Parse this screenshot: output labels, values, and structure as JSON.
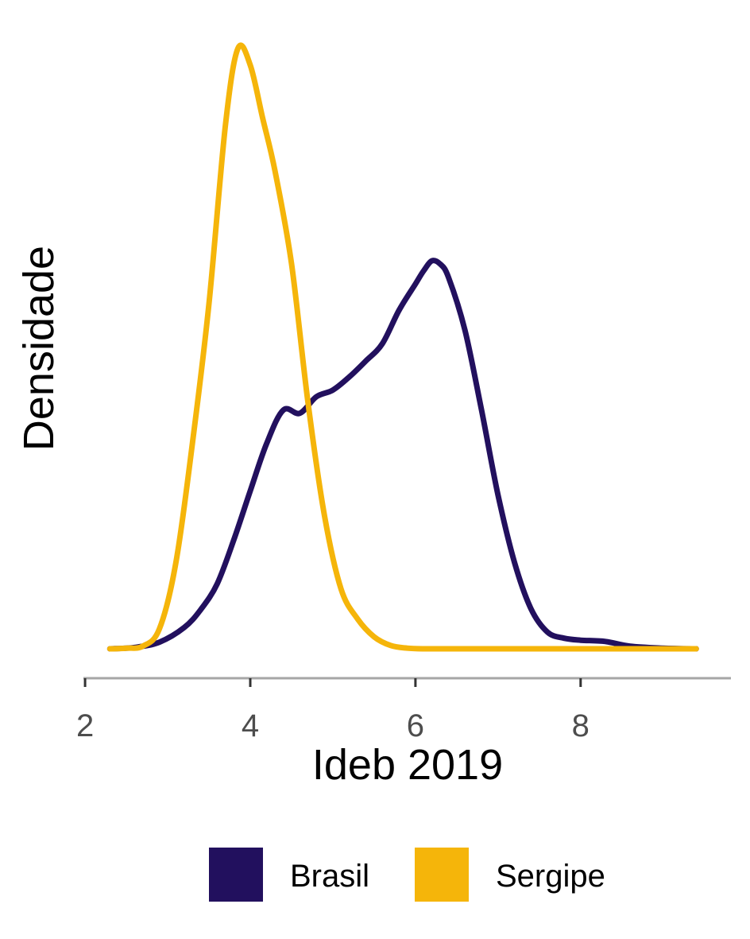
{
  "chart_data": {
    "type": "line",
    "title": "",
    "xlabel": "Ideb 2019",
    "ylabel": "Densidade",
    "xlim": [
      1.98,
      9.82
    ],
    "ylim": [
      0,
      0.92
    ],
    "x_ticks": [
      "2",
      "4",
      "6",
      "8"
    ],
    "x_tick_values": [
      2,
      4,
      6,
      8
    ],
    "y_ticks_shown": false,
    "grid": false,
    "legend_position": "bottom",
    "series": [
      {
        "name": "Brasil",
        "color": "#22105e",
        "x": [
          2.3,
          2.6,
          2.9,
          3.2,
          3.4,
          3.6,
          3.8,
          4.0,
          4.2,
          4.4,
          4.6,
          4.8,
          5.0,
          5.2,
          5.4,
          5.6,
          5.8,
          6.0,
          6.1,
          6.2,
          6.3,
          6.4,
          6.6,
          6.8,
          7.0,
          7.2,
          7.4,
          7.6,
          7.8,
          8.0,
          8.3,
          8.6,
          9.0,
          9.4
        ],
        "y": [
          0.0,
          0.002,
          0.01,
          0.032,
          0.059,
          0.098,
          0.164,
          0.238,
          0.31,
          0.36,
          0.355,
          0.38,
          0.39,
          0.41,
          0.434,
          0.46,
          0.51,
          0.55,
          0.57,
          0.585,
          0.58,
          0.56,
          0.48,
          0.36,
          0.232,
          0.13,
          0.06,
          0.025,
          0.016,
          0.013,
          0.011,
          0.004,
          0.001,
          0.0
        ],
        "note_ignore": ""
      },
      {
        "name": "Sergipe",
        "color": "#f5b50a",
        "x": [
          2.3,
          2.5,
          2.7,
          2.9,
          3.1,
          3.3,
          3.5,
          3.7,
          3.85,
          4.0,
          4.15,
          4.3,
          4.5,
          4.7,
          4.9,
          5.1,
          5.3,
          5.5,
          5.7,
          5.9,
          6.1,
          6.5,
          7.0,
          8.0,
          9.4
        ],
        "y": [
          0.0,
          0.001,
          0.004,
          0.03,
          0.13,
          0.31,
          0.52,
          0.79,
          0.905,
          0.88,
          0.8,
          0.72,
          0.58,
          0.37,
          0.2,
          0.09,
          0.045,
          0.018,
          0.005,
          0.001,
          0.0,
          0.0,
          0.0,
          0.0,
          0.0
        ]
      }
    ]
  },
  "legend": {
    "items": [
      {
        "label": "Brasil",
        "color": "#22105e"
      },
      {
        "label": "Sergipe",
        "color": "#f5b50a"
      }
    ]
  }
}
